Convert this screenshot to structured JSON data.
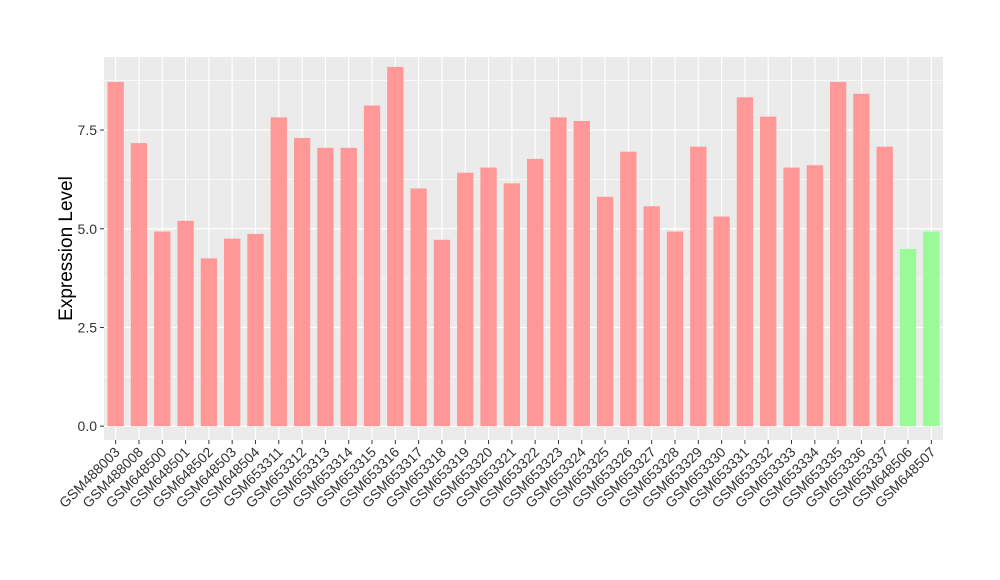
{
  "chart_data": {
    "type": "bar",
    "title": "",
    "xlabel": "",
    "ylabel": "Expression Level",
    "ylim": [
      -0.35,
      9.35
    ],
    "yticks": [
      "0.0",
      "2.5",
      "5.0",
      "7.5"
    ],
    "ytick_values": [
      0,
      2.5,
      5.0,
      7.5
    ],
    "grid": true,
    "legend": "none",
    "colors": {
      "panel": "#EBEBEB",
      "grid": "#FFFFFF",
      "group_a": "#FF9896",
      "group_b": "#98FB98"
    },
    "categories": [
      "GSM488003",
      "GSM488008",
      "GSM648500",
      "GSM648501",
      "GSM648502",
      "GSM648503",
      "GSM648504",
      "GSM653311",
      "GSM653312",
      "GSM653313",
      "GSM653314",
      "GSM653315",
      "GSM653316",
      "GSM653317",
      "GSM653318",
      "GSM653319",
      "GSM653320",
      "GSM653321",
      "GSM653322",
      "GSM653323",
      "GSM653324",
      "GSM653325",
      "GSM653326",
      "GSM653327",
      "GSM653328",
      "GSM653329",
      "GSM653330",
      "GSM653331",
      "GSM653332",
      "GSM653333",
      "GSM653334",
      "GSM653335",
      "GSM653336",
      "GSM653337",
      "GSM648506",
      "GSM648507"
    ],
    "values": [
      8.72,
      7.17,
      4.93,
      5.2,
      4.25,
      4.75,
      4.87,
      7.82,
      7.3,
      7.05,
      7.05,
      8.12,
      9.1,
      6.02,
      4.72,
      6.42,
      6.55,
      6.15,
      6.77,
      7.82,
      7.73,
      5.81,
      6.95,
      5.57,
      4.93,
      7.08,
      5.31,
      8.33,
      7.84,
      6.55,
      6.61,
      8.72,
      8.42,
      7.08,
      4.49,
      4.93
    ],
    "groups": [
      "a",
      "a",
      "a",
      "a",
      "a",
      "a",
      "a",
      "a",
      "a",
      "a",
      "a",
      "a",
      "a",
      "a",
      "a",
      "a",
      "a",
      "a",
      "a",
      "a",
      "a",
      "a",
      "a",
      "a",
      "a",
      "a",
      "a",
      "a",
      "a",
      "a",
      "a",
      "a",
      "a",
      "a",
      "b",
      "b"
    ]
  }
}
